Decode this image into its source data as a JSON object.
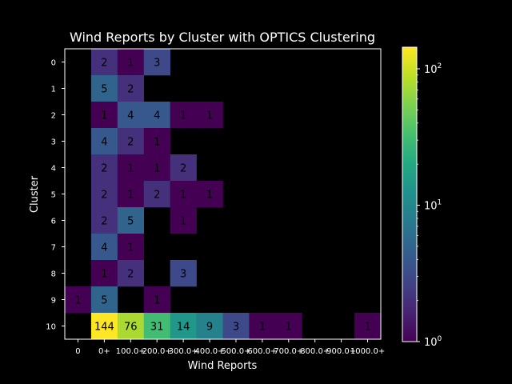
{
  "chart_data": {
    "type": "heatmap",
    "title": "Wind Reports by Cluster with OPTICS Clustering",
    "xlabel": "Wind Reports",
    "ylabel": "Cluster",
    "x_categories": [
      "0",
      "0+",
      "100.0+",
      "200.0+",
      "300.0+",
      "400.0+",
      "500.0+",
      "600.0+",
      "700.0+",
      "800.0+",
      "900.0+",
      "1000.0+"
    ],
    "y_categories": [
      "0",
      "1",
      "2",
      "3",
      "4",
      "5",
      "6",
      "7",
      "8",
      "9",
      "10"
    ],
    "values": [
      [
        null,
        2,
        1,
        3,
        null,
        null,
        null,
        null,
        null,
        null,
        null,
        null
      ],
      [
        null,
        5,
        2,
        null,
        null,
        null,
        null,
        null,
        null,
        null,
        null,
        null
      ],
      [
        null,
        1,
        4,
        4,
        1,
        1,
        null,
        null,
        null,
        null,
        null,
        null
      ],
      [
        null,
        4,
        2,
        1,
        null,
        null,
        null,
        null,
        null,
        null,
        null,
        null
      ],
      [
        null,
        2,
        1,
        1,
        2,
        null,
        null,
        null,
        null,
        null,
        null,
        null
      ],
      [
        null,
        2,
        1,
        2,
        1,
        1,
        null,
        null,
        null,
        null,
        null,
        null
      ],
      [
        null,
        2,
        5,
        null,
        1,
        null,
        null,
        null,
        null,
        null,
        null,
        null
      ],
      [
        null,
        4,
        1,
        null,
        null,
        null,
        null,
        null,
        null,
        null,
        null,
        null
      ],
      [
        null,
        1,
        2,
        null,
        3,
        null,
        null,
        null,
        null,
        null,
        null,
        null
      ],
      [
        1,
        5,
        null,
        1,
        null,
        null,
        null,
        null,
        null,
        null,
        null,
        null
      ],
      [
        null,
        144,
        76,
        31,
        14,
        9,
        3,
        1,
        1,
        null,
        null,
        1
      ]
    ],
    "colorbar": {
      "scale": "log",
      "range": [
        1,
        144
      ],
      "colormap": "viridis",
      "ticks": [
        1,
        10,
        100
      ],
      "tick_labels": [
        {
          "base": "10",
          "exp": "0"
        },
        {
          "base": "10",
          "exp": "1"
        },
        {
          "base": "10",
          "exp": "2"
        }
      ]
    },
    "grid": false,
    "background": "#000000"
  }
}
